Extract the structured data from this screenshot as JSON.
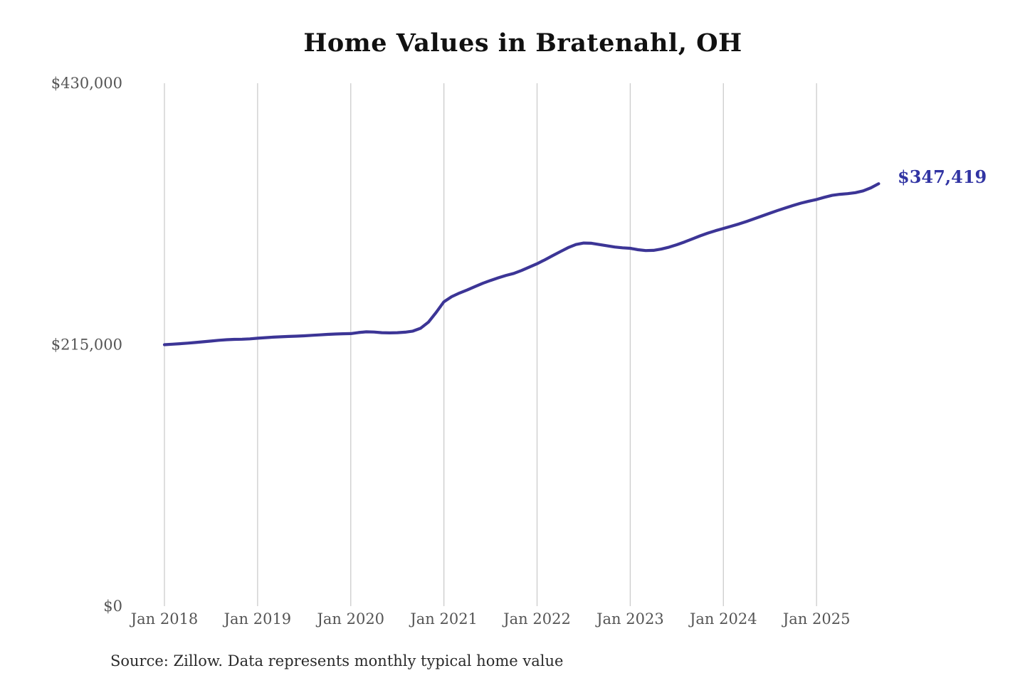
{
  "page": {
    "background": "#ffffff"
  },
  "chart_data": {
    "type": "line",
    "title": "Home Values in Bratenahl, OH",
    "source_note": "Source: Zillow. Data represents monthly typical home value",
    "series_name": "Monthly typical home value",
    "end_label": "$347,419",
    "end_value": 347419,
    "ylim": [
      0,
      430000
    ],
    "grid": "vertical-only",
    "legend": "none",
    "y_ticks": [
      {
        "label": "$430,000",
        "value": 430000
      },
      {
        "label": "$215,000",
        "value": 215000
      },
      {
        "label": "$0",
        "value": 0
      }
    ],
    "x_ticks": [
      {
        "label": "Jan 2018",
        "month": "2018-01"
      },
      {
        "label": "Jan 2019",
        "month": "2019-01"
      },
      {
        "label": "Jan 2020",
        "month": "2020-01"
      },
      {
        "label": "Jan 2021",
        "month": "2021-01"
      },
      {
        "label": "Jan 2022",
        "month": "2022-01"
      },
      {
        "label": "Jan 2023",
        "month": "2023-01"
      },
      {
        "label": "Jan 2024",
        "month": "2024-01"
      },
      {
        "label": "Jan 2025",
        "month": "2025-01"
      }
    ],
    "start_month": "2018-01",
    "months": [
      "2018-01",
      "2018-02",
      "2018-03",
      "2018-04",
      "2018-05",
      "2018-06",
      "2018-07",
      "2018-08",
      "2018-09",
      "2018-10",
      "2018-11",
      "2018-12",
      "2019-01",
      "2019-02",
      "2019-03",
      "2019-04",
      "2019-05",
      "2019-06",
      "2019-07",
      "2019-08",
      "2019-09",
      "2019-10",
      "2019-11",
      "2019-12",
      "2020-01",
      "2020-02",
      "2020-03",
      "2020-04",
      "2020-05",
      "2020-06",
      "2020-07",
      "2020-08",
      "2020-09",
      "2020-10",
      "2020-11",
      "2020-12",
      "2021-01",
      "2021-02",
      "2021-03",
      "2021-04",
      "2021-05",
      "2021-06",
      "2021-07",
      "2021-08",
      "2021-09",
      "2021-10",
      "2021-11",
      "2021-12",
      "2022-01",
      "2022-02",
      "2022-03",
      "2022-04",
      "2022-05",
      "2022-06",
      "2022-07",
      "2022-08",
      "2022-09",
      "2022-10",
      "2022-11",
      "2022-12",
      "2023-01",
      "2023-02",
      "2023-03",
      "2023-04",
      "2023-05",
      "2023-06",
      "2023-07",
      "2023-08",
      "2023-09",
      "2023-10",
      "2023-11",
      "2023-12",
      "2024-01",
      "2024-02",
      "2024-03",
      "2024-04",
      "2024-05",
      "2024-06",
      "2024-07",
      "2024-08",
      "2024-09",
      "2024-10",
      "2024-11",
      "2024-12",
      "2025-01",
      "2025-02",
      "2025-03",
      "2025-04",
      "2025-05",
      "2025-06",
      "2025-07",
      "2025-08",
      "2025-09"
    ],
    "values": [
      215000,
      215400,
      215800,
      216300,
      216800,
      217400,
      218000,
      218600,
      219100,
      219400,
      219500,
      219800,
      220300,
      220800,
      221200,
      221500,
      221800,
      222000,
      222300,
      222700,
      223100,
      223500,
      223800,
      224000,
      224100,
      225000,
      225600,
      225400,
      224900,
      224700,
      224900,
      225300,
      226200,
      228500,
      233500,
      241500,
      250300,
      254500,
      257500,
      260000,
      262800,
      265500,
      267800,
      270000,
      272000,
      273600,
      276000,
      278800,
      281600,
      284800,
      288200,
      291500,
      294800,
      297400,
      298600,
      298400,
      297400,
      296400,
      295300,
      294700,
      294300,
      293100,
      292400,
      292600,
      293600,
      295200,
      297200,
      299500,
      302000,
      304500,
      306800,
      308800,
      310600,
      312400,
      314300,
      316400,
      318600,
      320900,
      323200,
      325400,
      327500,
      329500,
      331400,
      333000,
      334400,
      336200,
      337800,
      338700,
      339200,
      340000,
      341500,
      344000,
      347419
    ],
    "colors": {
      "line": "#3c3596",
      "end_label": "#3134a3",
      "grid": "#cccccc",
      "tick_text": "#555555",
      "title": "#111111",
      "source_text": "#2b2b2b"
    }
  }
}
